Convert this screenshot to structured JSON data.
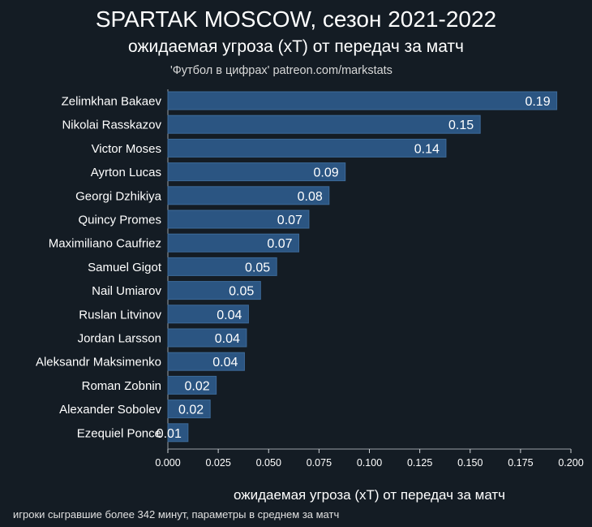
{
  "header": {
    "title": "SPARTAK MOSCOW, сезон 2021-2022",
    "subtitle": "ожидаемая угроза (xT) от передач за матч",
    "source": "'Футбол в цифрах' patreon.com/markstats"
  },
  "footer": {
    "note": "игроки сыгравшие более 342 минут, параметры в среднем за матч"
  },
  "colors": {
    "background": "#141c24",
    "bar": "#2b5582",
    "bar_edge": "#3d6a99",
    "text": "#ffffff"
  },
  "chart_data": {
    "type": "bar",
    "orientation": "horizontal",
    "title": "SPARTAK MOSCOW, сезон 2021-2022",
    "subtitle": "ожидаемая угроза (xT) от передач за матч",
    "xlabel": "ожидаемая угроза (xT) от передач за матч",
    "ylabel": "",
    "xlim": [
      0,
      0.2
    ],
    "xticks": [
      "0.000",
      "0.025",
      "0.050",
      "0.075",
      "0.100",
      "0.125",
      "0.150",
      "0.175",
      "0.200"
    ],
    "grid": false,
    "categories": [
      "Zelimkhan Bakaev",
      "Nikolai Rasskazov",
      "Victor Moses",
      "Ayrton Lucas",
      "Georgi Dzhikiya",
      "Quincy Promes",
      "Maximiliano Caufriez",
      "Samuel Gigot",
      "Nail Umiarov",
      "Ruslan Litvinov",
      "Jordan Larsson",
      "Aleksandr Maksimenko",
      "Roman Zobnin",
      "Alexander Sobolev",
      "Ezequiel Ponce"
    ],
    "values": [
      0.193,
      0.155,
      0.138,
      0.088,
      0.08,
      0.07,
      0.065,
      0.054,
      0.046,
      0.04,
      0.039,
      0.038,
      0.024,
      0.021,
      0.01
    ],
    "value_labels": [
      "0.19",
      "0.15",
      "0.14",
      "0.09",
      "0.08",
      "0.07",
      "0.07",
      "0.05",
      "0.05",
      "0.04",
      "0.04",
      "0.04",
      "0.02",
      "0.02",
      "0.01"
    ]
  }
}
